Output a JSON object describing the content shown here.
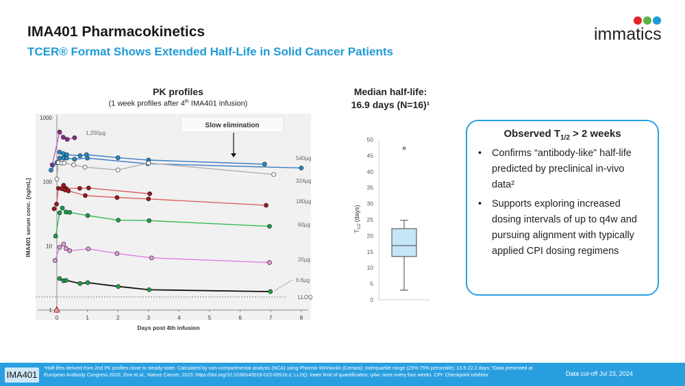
{
  "header": {
    "title": "IMA401 Pharmacokinetics",
    "subtitle": "TCER® Format Shows Extended Half-Life in Solid Cancer Patients",
    "logo_text": "immatics"
  },
  "pk": {
    "title": "PK profiles",
    "subtitle_pre": "(1 week profiles after 4",
    "subtitle_sup": "th",
    "subtitle_post": " IMA401 infusion)"
  },
  "median": {
    "line1": "Median half-life:",
    "line2": "16.9 days (N=16)¹"
  },
  "callout": {
    "title_pre": "Observed T",
    "title_sub": "1/2",
    "title_post": " > 2 weeks",
    "bullets": [
      "Confirms “antibody-like” half-life predicted by preclinical in-vivo data²",
      "Supports exploring increased dosing intervals of up to q4w and pursuing alignment with typically applied CPI dosing regimens"
    ]
  },
  "footer": {
    "tag": "IMA401",
    "footnote": "¹Half-lifes derived from 2nd PK profiles close to steady-state. Calculated by non-compartmental analysis (NCA) using Phoenix WinNonlin (Certara); Interquartile range (25%-75% percentile): 13.5-22.2 days; ²Data presented at European Antibody Congress 2020; Zinn et al., Nature Cancer, 2023: https://doi.org/10.1038/s43018-023-00516-z; LLOQ: lower limit of quantification; q4w: once every four weeks. CPI: Checkpoint inhibitor",
    "cutoff": "Data cut-off Jul 23, 2024"
  },
  "colors": {
    "accent": "#2a9fe0",
    "title_blue": "#1e9ad6"
  },
  "chart_data": [
    {
      "type": "line",
      "title": "",
      "xlabel": "Days post 4th infusion",
      "ylabel": "IMA401 serum conc. [ng/mL]",
      "yscale": "log",
      "xlim": [
        0,
        8
      ],
      "ylim": [
        1,
        1000
      ],
      "xticks": [
        0,
        1,
        2,
        3,
        4,
        5,
        6,
        7,
        8
      ],
      "yticks": [
        1,
        10,
        100,
        1000
      ],
      "lloq": 1.6,
      "annotation": "Slow elimination",
      "lloq_label": "LLOQ",
      "series": [
        {
          "name": "1,200µg",
          "color": "#8b2a8b",
          "line": "#c060c0",
          "hollow": false,
          "x": [
            -0.15,
            0.09,
            0.21,
            0.34,
            0.58
          ],
          "y": [
            183,
            597,
            494,
            459,
            486
          ]
        },
        {
          "name": "540µg",
          "color": "#1f8fcf",
          "line": "#3b7cc4",
          "hollow": false,
          "x": [
            0.09,
            0.21,
            0.32,
            0.76,
            0.97,
            2,
            3,
            6.8
          ],
          "y": [
            290,
            275,
            265,
            255,
            265,
            237,
            218,
            188
          ]
        },
        {
          "name": "",
          "color": "#1f8fcf",
          "line": "#3b7cc4",
          "hollow": false,
          "x": [
            -0.19,
            0,
            0.09,
            0.22,
            0.32,
            0.58,
            1,
            2.98,
            8
          ],
          "y": [
            152,
            199,
            234,
            234,
            234,
            225,
            234,
            191,
            164
          ]
        },
        {
          "name": "324µg",
          "color": "#ffffff",
          "line": "#b0b0b0",
          "hollow": true,
          "x": [
            0,
            0.05,
            0.16,
            0.24,
            0.55,
            0.92,
            2,
            3,
            7.1
          ],
          "y": [
            110,
            199,
            196,
            196,
            183,
            169,
            153,
            196,
            130
          ]
        },
        {
          "name": "180µg",
          "color": "#a0141e",
          "line": "#e06060",
          "hollow": false,
          "x": [
            -0.09,
            -0.01,
            0.05,
            0.22,
            0.3,
            0.75,
            1.04,
            3.04
          ],
          "y": [
            37.8,
            44.8,
            79,
            88.5,
            79,
            79,
            80,
            65
          ]
        },
        {
          "name": "",
          "color": "#a0141e",
          "line": "#e06060",
          "hollow": false,
          "x": [
            0.17,
            0.27,
            0.38,
            0.93,
            1.97,
            3,
            6.85
          ],
          "y": [
            77.6,
            74.5,
            72,
            61,
            56.8,
            54,
            43
          ]
        },
        {
          "name": "60µg",
          "color": "#1aa34a",
          "line": "#33bb55",
          "hollow": false,
          "x": [
            -0.04,
            0.09,
            0.18,
            0.3,
            0.42,
            1.01,
            2.01,
            3.02,
            6.96
          ],
          "y": [
            14.2,
            32.8,
            39,
            33.7,
            33.3,
            29.7,
            25.2,
            24.8,
            20.2
          ]
        },
        {
          "name": "20µg",
          "color": "#e59be8",
          "line": "#e080e0",
          "hollow": false,
          "x": [
            -0.06,
            0.09,
            0.22,
            0.3,
            0.42,
            1.03,
            1.97,
            3.1,
            6.96
          ],
          "y": [
            5.9,
            9.5,
            10.7,
            9.1,
            8.4,
            9.0,
            7.6,
            6.5,
            5.5
          ]
        },
        {
          "name": "6.6µg",
          "color": "#1aa34a",
          "line": "#111111",
          "hollow": false,
          "x": [
            0.09,
            0.22,
            0.3,
            0.76,
            1.01,
            2.01,
            3.02,
            6.99
          ],
          "y": [
            3.1,
            2.86,
            2.9,
            2.59,
            2.67,
            2.33,
            2.07,
            1.94
          ]
        }
      ]
    },
    {
      "type": "box",
      "title": "",
      "ylabel_pre": "T",
      "ylabel_sub": "1/2",
      "ylabel_post": " (days)",
      "ylim": [
        0,
        50
      ],
      "yticks": [
        0,
        5,
        10,
        15,
        20,
        25,
        30,
        35,
        40,
        45,
        50
      ],
      "median": 16.9,
      "q1": 13.5,
      "q3": 22.2,
      "whisker_low": 3,
      "whisker_high": 24.8,
      "outliers": [
        47.3
      ],
      "fill": "#c5e6f7"
    }
  ]
}
